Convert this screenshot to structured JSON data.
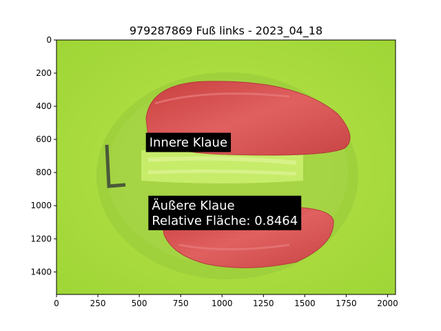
{
  "chart_data": {
    "type": "image",
    "title": "979287869 Fuß links - 2023_04_18",
    "xlabel": "",
    "ylabel": "",
    "xlim": [
      0,
      2048
    ],
    "ylim": [
      1536,
      0
    ],
    "x_ticks": [
      0,
      250,
      500,
      750,
      1000,
      1250,
      1500,
      1750,
      2000
    ],
    "y_ticks": [
      0,
      200,
      400,
      600,
      800,
      1000,
      1200,
      1400
    ],
    "grid": false,
    "annotations": [
      {
        "lines": [
          "Innere Klaue"
        ],
        "x": 540,
        "y": 560
      },
      {
        "lines": [
          "Äußere Klaue",
          "Relative Fläche: 0.8464"
        ],
        "x": 555,
        "y": 940
      }
    ],
    "regions": [
      {
        "label": "Innere Klaue",
        "color": "#d9534f"
      },
      {
        "label": "Äußere Klaue",
        "color": "#d9534f"
      }
    ],
    "colors": {
      "background": "#a6dd3a",
      "mask": "#d84a4a"
    }
  }
}
